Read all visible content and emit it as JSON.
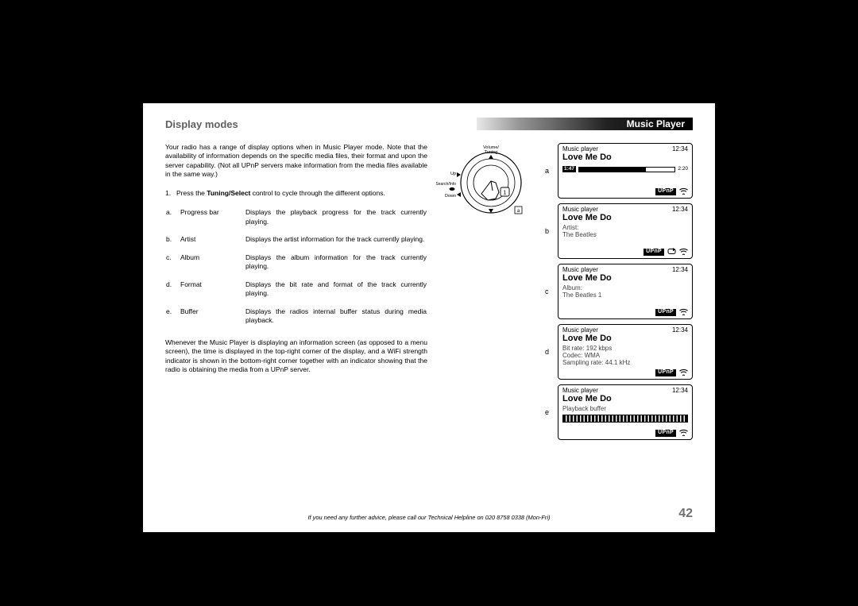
{
  "header": {
    "section_title": "Display modes",
    "chapter": "Music Player"
  },
  "intro": "Your radio has a range of display options when in Music Player mode. Note that the availability of information depends on the specific media files, their format and upon the server capability. (Not all UPnP servers make information from the media files available in the same way.)",
  "step": {
    "num": "1.",
    "pre": "Press the ",
    "bold": "Tuning/Select",
    "post": " control to cycle through the different options."
  },
  "options": [
    {
      "letter": "a.",
      "name": "Progress bar",
      "desc": "Displays the playback progress for the track currently playing."
    },
    {
      "letter": "b.",
      "name": "Artist",
      "desc": "Displays the artist information for the track currently playing."
    },
    {
      "letter": "c.",
      "name": "Album",
      "desc": "Displays the album information for the track currently playing."
    },
    {
      "letter": "d.",
      "name": "Format",
      "desc": "Displays the bit rate and format of the track currently playing."
    },
    {
      "letter": "e.",
      "name": "Buffer",
      "desc": "Displays the radios internal buffer status during media playback."
    }
  ],
  "outro": "Whenever the Music Player is displaying an information screen (as opposed to a menu screen), the time is displayed in the top-right corner of the display, and a WiFi strength indicator is shown in the bottom-right corner together with an indicator showing that the radio is obtaining the media from a UPnP server.",
  "dial": {
    "top_label1": "Volume/",
    "top_label2": "Tuning",
    "left_label1": "Up",
    "left_label2": "Search/Info",
    "left_label3": "Down",
    "inner_num": "1",
    "corner": "a"
  },
  "lcd_common": {
    "mode": "Music player",
    "clock": "12:34",
    "track": "Love Me Do"
  },
  "screens": {
    "a": {
      "elapsed": "1:47",
      "total": "2:20",
      "progress_pct": 70
    },
    "b": {
      "label": "Artist:",
      "value": "The Beatles"
    },
    "c": {
      "label": "Album:",
      "value": "The Beatles 1"
    },
    "d": {
      "line1": "Bit rate: 192 kbps",
      "line2": "Codec: WMA",
      "line3": "Sampling rate: 44.1 kHz"
    },
    "e": {
      "label": "Playback buffer"
    }
  },
  "row_labels": {
    "a": "a",
    "b": "b",
    "c": "c",
    "d": "d",
    "e": "e"
  },
  "upnp_tag": "UPnP",
  "footer": {
    "helpline": "If you need any further advice, please call our Technical Helpline on 020 8758 0338 (Mon-Fri)",
    "page_num": "42"
  }
}
